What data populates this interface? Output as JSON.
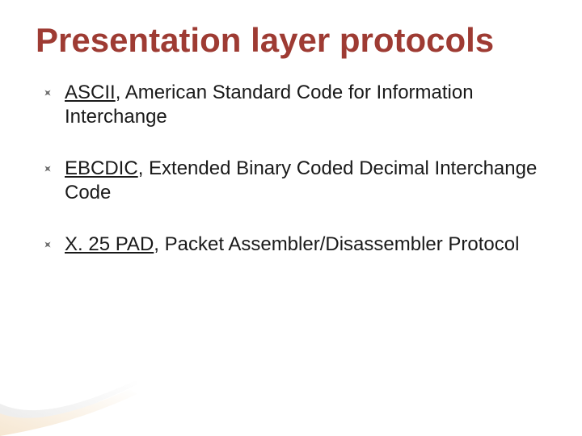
{
  "slide": {
    "title": "Presentation layer protocols",
    "title_color": "#9e3b33",
    "title_font_family": "Trebuchet MS, Lucida Sans Unicode, sans-serif",
    "title_font_size_pt": 32,
    "title_font_weight": 700,
    "background_color": "#ffffff",
    "bullet_marker_color": "#6f6f6f",
    "body_font_family": "Verdana, Geneva, sans-serif",
    "body_font_size_pt": 18,
    "body_color": "#1a1a1a",
    "link_color": "#1a1a1a",
    "accent_gradient_from": "#f6e7d2",
    "accent_gradient_to": "#ffffff",
    "bullets": [
      {
        "link": "ASCII",
        "rest": ", American Standard Code for Information Interchange"
      },
      {
        "link": "EBCDIC",
        "rest": ", Extended Binary Coded Decimal Interchange Code"
      },
      {
        "link": "X. 25 PAD",
        "rest": ", Packet Assembler/Disassembler Protocol"
      }
    ]
  }
}
